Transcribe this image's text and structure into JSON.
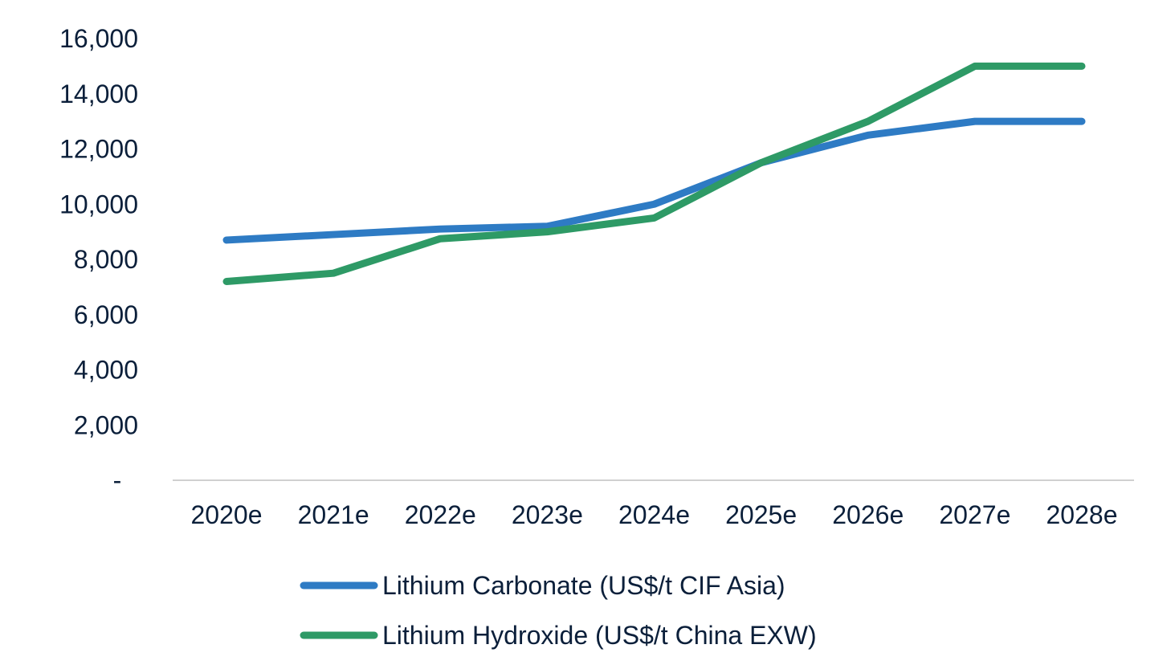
{
  "colors": {
    "text": "#0b1f3a",
    "axis": "#d0d0d0",
    "carbonate": "#2e7bc4",
    "hydroxide": "#2e9a66"
  },
  "chart_data": {
    "type": "line",
    "title": "",
    "xlabel": "",
    "ylabel": "",
    "categories": [
      "2020e",
      "2021e",
      "2022e",
      "2023e",
      "2024e",
      "2025e",
      "2026e",
      "2027e",
      "2028e"
    ],
    "ylim": [
      0,
      16000
    ],
    "yticks": [
      {
        "value": 0,
        "label": "-"
      },
      {
        "value": 2000,
        "label": "2,000"
      },
      {
        "value": 4000,
        "label": "4,000"
      },
      {
        "value": 6000,
        "label": "6,000"
      },
      {
        "value": 8000,
        "label": "8,000"
      },
      {
        "value": 10000,
        "label": "10,000"
      },
      {
        "value": 12000,
        "label": "12,000"
      },
      {
        "value": 14000,
        "label": "14,000"
      },
      {
        "value": 16000,
        "label": "16,000"
      }
    ],
    "grid": false,
    "legend_position": "bottom",
    "series": [
      {
        "name": "Lithium Carbonate (US$/t CIF Asia)",
        "color_key": "carbonate",
        "values": [
          8700,
          8900,
          9100,
          9200,
          10000,
          11500,
          12500,
          13000,
          13000
        ]
      },
      {
        "name": "Lithium Hydroxide (US$/t China EXW)",
        "color_key": "hydroxide",
        "values": [
          7200,
          7500,
          8750,
          9000,
          9500,
          11500,
          13000,
          15000,
          15000
        ]
      }
    ]
  }
}
